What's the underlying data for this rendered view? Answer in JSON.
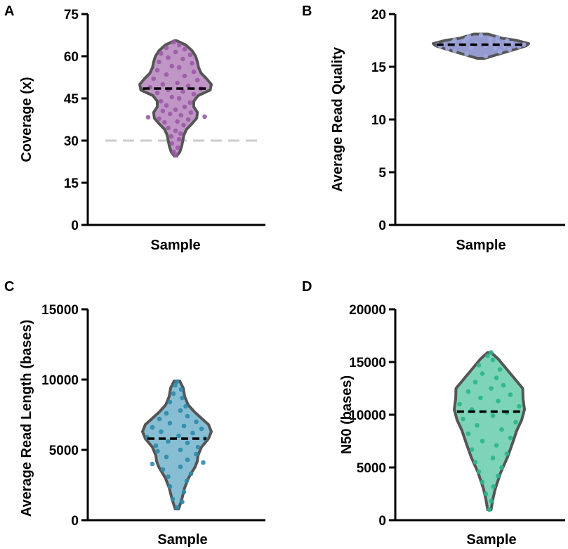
{
  "chart_data": [
    {
      "type": "violin",
      "panel_label": "A",
      "title": "",
      "xlabel": "Sample",
      "ylabel": "Coverage (x)",
      "ylim": [
        0,
        75
      ],
      "yticks": [
        "0",
        "15",
        "30",
        "45",
        "60",
        "75"
      ],
      "median": 48.5,
      "threshold": 30,
      "fill_color": "#b07cb8",
      "point_color": "#9b5aa6",
      "threshold_color": "#cccccc",
      "density": [
        [
          24.5,
          0.03
        ],
        [
          26,
          0.12
        ],
        [
          28,
          0.17
        ],
        [
          30,
          0.2
        ],
        [
          32,
          0.23
        ],
        [
          34,
          0.3
        ],
        [
          36,
          0.45
        ],
        [
          38,
          0.58
        ],
        [
          40,
          0.6
        ],
        [
          42,
          0.5
        ],
        [
          44,
          0.5
        ],
        [
          46,
          0.62
        ],
        [
          48,
          0.95
        ],
        [
          50,
          0.98
        ],
        [
          52,
          0.85
        ],
        [
          54,
          0.7
        ],
        [
          56,
          0.63
        ],
        [
          58,
          0.6
        ],
        [
          60,
          0.55
        ],
        [
          62,
          0.45
        ],
        [
          64,
          0.28
        ],
        [
          65.5,
          0.03
        ]
      ],
      "points": [
        [
          25,
          0.0
        ],
        [
          26,
          -0.05
        ],
        [
          27.5,
          0.06
        ],
        [
          29,
          -0.1
        ],
        [
          30.5,
          0.1
        ],
        [
          31.5,
          -0.12
        ],
        [
          32.5,
          0.14
        ],
        [
          33.5,
          0.0
        ],
        [
          34.5,
          -0.2
        ],
        [
          35.5,
          0.22
        ],
        [
          36.5,
          -0.3
        ],
        [
          36.8,
          0.05
        ],
        [
          37.5,
          0.35
        ],
        [
          37.8,
          -0.45
        ],
        [
          38.3,
          -0.75
        ],
        [
          38.5,
          0.8
        ],
        [
          39,
          0.15
        ],
        [
          39.5,
          -0.15
        ],
        [
          40,
          0.42
        ],
        [
          40.5,
          -0.35
        ],
        [
          41,
          0.0
        ],
        [
          42,
          0.25
        ],
        [
          42.5,
          -0.25
        ],
        [
          43.5,
          0.4
        ],
        [
          44,
          -0.4
        ],
        [
          45,
          0.1
        ],
        [
          45.5,
          -0.1
        ],
        [
          46.5,
          0.5
        ],
        [
          47,
          -0.5
        ],
        [
          47.5,
          0.2
        ],
        [
          48,
          -0.2
        ],
        [
          48.5,
          0.7
        ],
        [
          49,
          -0.7
        ],
        [
          49.5,
          0.35
        ],
        [
          50,
          -0.35
        ],
        [
          50.5,
          0.05
        ],
        [
          51.5,
          0.6
        ],
        [
          52,
          -0.6
        ],
        [
          53,
          0.25
        ],
        [
          53.5,
          -0.25
        ],
        [
          54.5,
          0.5
        ],
        [
          55,
          -0.5
        ],
        [
          56,
          0.1
        ],
        [
          56.5,
          -0.1
        ],
        [
          57.5,
          0.45
        ],
        [
          58,
          -0.45
        ],
        [
          59,
          0.2
        ],
        [
          59.5,
          -0.2
        ],
        [
          60.5,
          0.4
        ],
        [
          61,
          -0.4
        ],
        [
          61.5,
          0.0
        ],
        [
          62.5,
          0.25
        ],
        [
          63,
          -0.25
        ],
        [
          64,
          0.1
        ],
        [
          65,
          -0.05
        ]
      ]
    },
    {
      "type": "violin",
      "panel_label": "B",
      "title": "",
      "xlabel": "Sample",
      "ylabel": "Average Read Quality",
      "ylim": [
        0,
        20
      ],
      "yticks": [
        "0",
        "5",
        "10",
        "15",
        "20"
      ],
      "median": 17.1,
      "fill_color": "#7b82c4",
      "point_color": "#a0a8e0",
      "density": [
        [
          15.8,
          0.08
        ],
        [
          16.1,
          0.3
        ],
        [
          16.5,
          0.6
        ],
        [
          16.8,
          0.82
        ],
        [
          17.0,
          0.95
        ],
        [
          17.2,
          1.0
        ],
        [
          17.5,
          0.75
        ],
        [
          17.7,
          0.45
        ],
        [
          17.9,
          0.3
        ],
        [
          18.1,
          0.15
        ]
      ],
      "points": [
        [
          16.0,
          0.1
        ],
        [
          16.2,
          -0.3
        ],
        [
          16.4,
          0.4
        ],
        [
          16.5,
          -0.55
        ],
        [
          16.6,
          0.6
        ],
        [
          16.7,
          -0.7
        ],
        [
          16.8,
          0.3
        ],
        [
          16.85,
          -0.2
        ],
        [
          16.9,
          0.8
        ],
        [
          16.95,
          -0.85
        ],
        [
          17.0,
          0.1
        ],
        [
          17.0,
          0.5
        ],
        [
          17.05,
          -0.45
        ],
        [
          17.1,
          0.9
        ],
        [
          17.1,
          -0.9
        ],
        [
          17.15,
          0.2
        ],
        [
          17.2,
          -0.1
        ],
        [
          17.25,
          0.65
        ],
        [
          17.3,
          -0.6
        ],
        [
          17.35,
          0.35
        ],
        [
          17.4,
          -0.35
        ],
        [
          17.5,
          0.55
        ],
        [
          17.55,
          -0.55
        ],
        [
          17.6,
          0.2
        ],
        [
          17.7,
          -0.3
        ],
        [
          17.8,
          0.35
        ],
        [
          17.9,
          -0.25
        ],
        [
          18.0,
          0.0
        ]
      ]
    },
    {
      "type": "violin",
      "panel_label": "C",
      "title": "",
      "xlabel": "Sample",
      "ylabel": "Average Read Length (bases)",
      "ylim": [
        0,
        15000
      ],
      "yticks": [
        "0",
        "5000",
        "10000",
        "15000"
      ],
      "median": 5800,
      "fill_color": "#6aaec8",
      "point_color": "#2e8aaa",
      "density": [
        [
          800,
          0.05
        ],
        [
          1500,
          0.14
        ],
        [
          2300,
          0.22
        ],
        [
          3000,
          0.33
        ],
        [
          3800,
          0.52
        ],
        [
          4200,
          0.58
        ],
        [
          4600,
          0.6
        ],
        [
          5200,
          0.7
        ],
        [
          5800,
          0.9
        ],
        [
          6300,
          0.98
        ],
        [
          6800,
          0.9
        ],
        [
          7200,
          0.72
        ],
        [
          7700,
          0.5
        ],
        [
          8200,
          0.32
        ],
        [
          8800,
          0.22
        ],
        [
          9400,
          0.18
        ],
        [
          9900,
          0.08
        ]
      ],
      "points": [
        [
          900,
          0.0
        ],
        [
          1300,
          0.15
        ],
        [
          1500,
          -0.12
        ],
        [
          2000,
          0.2
        ],
        [
          2400,
          -0.2
        ],
        [
          2800,
          0.28
        ],
        [
          3100,
          -0.25
        ],
        [
          3300,
          0.4
        ],
        [
          3600,
          -0.4
        ],
        [
          3800,
          0.1
        ],
        [
          4000,
          -0.7
        ],
        [
          4100,
          0.75
        ],
        [
          4300,
          0.3
        ],
        [
          4500,
          -0.3
        ],
        [
          4700,
          0.55
        ],
        [
          4900,
          -0.55
        ],
        [
          5000,
          0.1
        ],
        [
          5200,
          0.6
        ],
        [
          5300,
          -0.6
        ],
        [
          5500,
          0.3
        ],
        [
          5600,
          -0.25
        ],
        [
          5800,
          0.8
        ],
        [
          5900,
          -0.85
        ],
        [
          6000,
          0.05
        ],
        [
          6200,
          0.45
        ],
        [
          6300,
          -0.45
        ],
        [
          6500,
          0.7
        ],
        [
          6600,
          -0.7
        ],
        [
          6700,
          0.2
        ],
        [
          6900,
          -0.2
        ],
        [
          7000,
          0.55
        ],
        [
          7200,
          -0.5
        ],
        [
          7400,
          0.3
        ],
        [
          7600,
          -0.3
        ],
        [
          7800,
          0.1
        ],
        [
          8100,
          0.25
        ],
        [
          8400,
          -0.2
        ],
        [
          8700,
          0.15
        ],
        [
          9000,
          -0.1
        ],
        [
          9300,
          0.12
        ],
        [
          9600,
          -0.05
        ],
        [
          9850,
          0.0
        ]
      ]
    },
    {
      "type": "violin",
      "panel_label": "D",
      "title": "",
      "xlabel": "Sample",
      "ylabel": "N50 (bases)",
      "ylim": [
        0,
        20000
      ],
      "yticks": [
        "0",
        "5000",
        "10000",
        "15000",
        "20000"
      ],
      "median": 10300,
      "fill_color": "#5cc9a6",
      "point_color": "#2bb58a",
      "density": [
        [
          1000,
          0.05
        ],
        [
          2000,
          0.1
        ],
        [
          3000,
          0.17
        ],
        [
          4500,
          0.32
        ],
        [
          6000,
          0.52
        ],
        [
          7500,
          0.68
        ],
        [
          8500,
          0.78
        ],
        [
          9500,
          0.92
        ],
        [
          10500,
          1.0
        ],
        [
          11500,
          0.96
        ],
        [
          12500,
          0.95
        ],
        [
          13500,
          0.7
        ],
        [
          14500,
          0.45
        ],
        [
          15300,
          0.25
        ],
        [
          15900,
          0.05
        ]
      ],
      "points": [
        [
          1000,
          0.0
        ],
        [
          1800,
          0.05
        ],
        [
          2500,
          -0.1
        ],
        [
          3200,
          0.12
        ],
        [
          3600,
          -0.2
        ],
        [
          4200,
          0.25
        ],
        [
          4600,
          -0.3
        ],
        [
          5000,
          0.35
        ],
        [
          5500,
          -0.4
        ],
        [
          5900,
          0.1
        ],
        [
          6300,
          0.5
        ],
        [
          6700,
          -0.5
        ],
        [
          7100,
          0.2
        ],
        [
          7500,
          -0.2
        ],
        [
          7800,
          0.6
        ],
        [
          8200,
          -0.6
        ],
        [
          8600,
          0.35
        ],
        [
          9000,
          -0.35
        ],
        [
          9300,
          0.75
        ],
        [
          9600,
          -0.75
        ],
        [
          9900,
          0.1
        ],
        [
          10200,
          0.5
        ],
        [
          10500,
          -0.5
        ],
        [
          10800,
          0.85
        ],
        [
          11000,
          -0.85
        ],
        [
          11300,
          0.25
        ],
        [
          11600,
          -0.25
        ],
        [
          11900,
          0.6
        ],
        [
          12200,
          -0.6
        ],
        [
          12500,
          0.05
        ],
        [
          12800,
          0.4
        ],
        [
          13100,
          -0.4
        ],
        [
          13500,
          0.2
        ],
        [
          13900,
          -0.2
        ],
        [
          14300,
          0.3
        ],
        [
          14700,
          -0.3
        ],
        [
          15200,
          0.1
        ],
        [
          15600,
          -0.05
        ],
        [
          15900,
          0.05
        ]
      ]
    }
  ]
}
